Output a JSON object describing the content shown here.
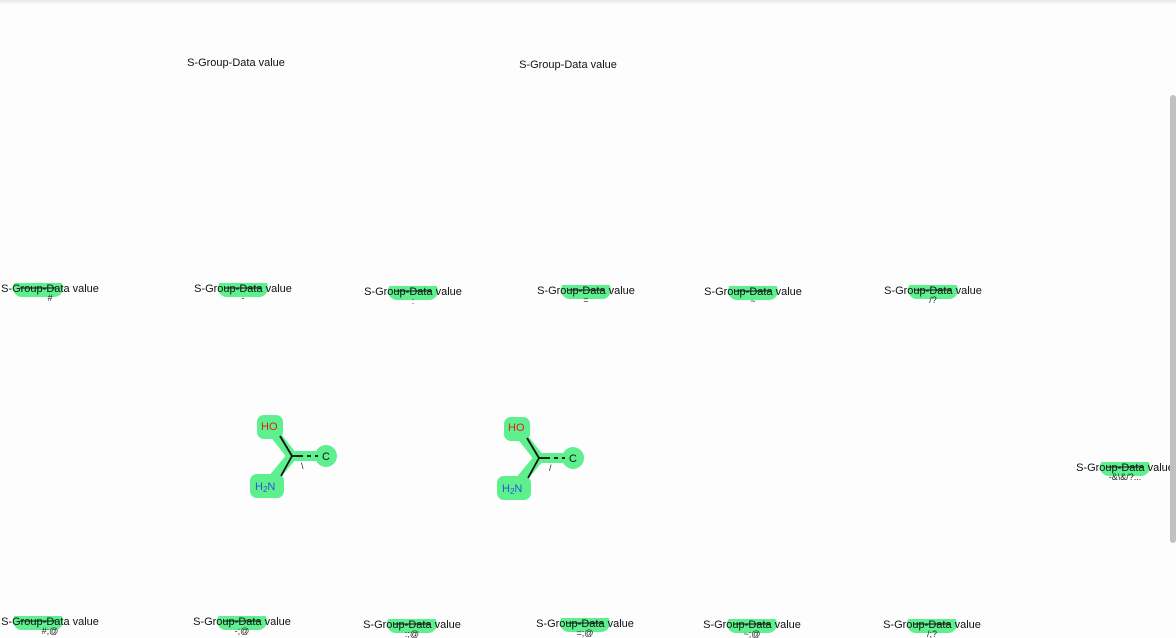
{
  "top_labels": [
    {
      "text": "S-Group-Data value"
    },
    {
      "text": "S-Group-Data value"
    }
  ],
  "row1": [
    {
      "label": "S-Group-Data value",
      "query": "#"
    },
    {
      "label": "S-Group-Data value",
      "query": "-"
    },
    {
      "label": "S-Group-Data value",
      "query": ":"
    },
    {
      "label": "S-Group-Data value",
      "query": "="
    },
    {
      "label": "S-Group-Data value",
      "query": "~"
    },
    {
      "label": "S-Group-Data value",
      "query": "/?"
    }
  ],
  "row2": [
    {
      "label": "S-Group-Data value",
      "query": "#;@"
    },
    {
      "label": "S-Group-Data value",
      "query": "-;@"
    },
    {
      "label": "S-Group-Data value",
      "query": ":;@"
    },
    {
      "label": "S-Group-Data value",
      "query": "=;@"
    },
    {
      "label": "S-Group-Data value",
      "query": "~;@"
    },
    {
      "label": "S-Group-Data value",
      "query": "/;?"
    }
  ],
  "right_item": {
    "label": "S-Group-Data value",
    "query": "-&\\&/?..."
  },
  "molecules": [
    {
      "oh": "HO",
      "nh2_main": "H",
      "nh2_sub": "2",
      "nh2_n": "N",
      "c": "C",
      "bond_mark": "\\"
    },
    {
      "oh": "HO",
      "nh2_main": "H",
      "nh2_sub": "2",
      "nh2_n": "N",
      "c": "C",
      "bond_mark": "/"
    }
  ],
  "colors": {
    "highlight": "#5ef08e",
    "oxygen": "#e0201b",
    "nitrogen": "#2b57d9",
    "bond": "#111111"
  }
}
